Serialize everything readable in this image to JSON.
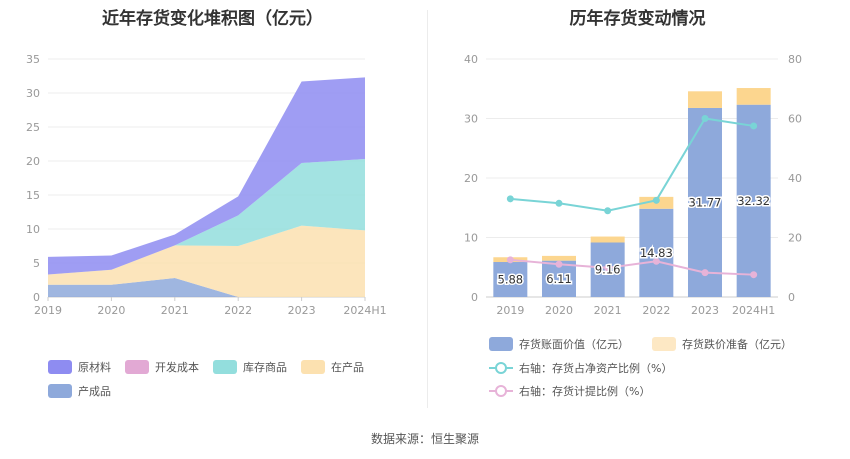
{
  "left_title": "近年存货变化堆积图（亿元）",
  "right_title": "历年存货变动情况",
  "source": "数据来源：恒生聚源",
  "chart_data": [
    {
      "type": "area",
      "stacked": true,
      "title": "近年存货变化堆积图（亿元）",
      "categories": [
        "2019",
        "2020",
        "2021",
        "2022",
        "2023",
        "2024H1"
      ],
      "ylim": [
        0,
        35
      ],
      "yticks": [
        0,
        5,
        10,
        15,
        20,
        25,
        30,
        35
      ],
      "grid": true,
      "legend_position": "bottom",
      "series": [
        {
          "name": "产成品",
          "color": "#8ea9db",
          "values": [
            1.8,
            1.8,
            2.8,
            0,
            0,
            0
          ]
        },
        {
          "name": "在产品",
          "color": "#fce1b0",
          "values": [
            1.5,
            2.2,
            4.8,
            7.5,
            10.5,
            9.8
          ]
        },
        {
          "name": "库存商品",
          "color": "#93dedd",
          "values": [
            0,
            0,
            0,
            4.5,
            9.2,
            10.5
          ]
        },
        {
          "name": "开发成本",
          "color": "#e2a9d4",
          "values": [
            0,
            0,
            0,
            0,
            0,
            0
          ]
        },
        {
          "name": "原材料",
          "color": "#8e8cf1",
          "values": [
            2.6,
            2.1,
            1.6,
            2.8,
            12.0,
            12.0
          ]
        }
      ],
      "legend_order": [
        "原材料",
        "开发成本",
        "库存商品",
        "在产品",
        "产成品"
      ]
    },
    {
      "type": "bar",
      "stacked": true,
      "title": "历年存货变动情况",
      "categories": [
        "2019",
        "2020",
        "2021",
        "2022",
        "2023",
        "2024H1"
      ],
      "ylim": [
        0,
        40
      ],
      "yticks": [
        0,
        10,
        20,
        30,
        40
      ],
      "y2lim": [
        0,
        80
      ],
      "y2ticks": [
        0,
        20,
        40,
        60,
        80
      ],
      "grid": true,
      "legend_position": "bottom",
      "bars": [
        {
          "name": "存货账面价值（亿元）",
          "color": "#8ea9db",
          "values": [
            5.88,
            6.11,
            9.16,
            14.83,
            31.77,
            32.32
          ],
          "labels": [
            "5.88",
            "6.11",
            "9.16",
            "14.83",
            "31.77",
            "32.32"
          ]
        },
        {
          "name": "存货跌价准备（亿元）",
          "color": "#fcd68f",
          "values": [
            0.8,
            0.8,
            1.0,
            2.0,
            2.8,
            2.8
          ]
        }
      ],
      "lines": [
        {
          "name": "右轴：存货占净资产比例（%）",
          "color": "#79d4d6",
          "axis": "right",
          "values": [
            33,
            31.5,
            29,
            32.5,
            60,
            57.5
          ]
        },
        {
          "name": "右轴：存货计提比例（%）",
          "color": "#e7b3d8",
          "axis": "right",
          "values": [
            12.5,
            11,
            9.8,
            12,
            8.2,
            7.5
          ]
        }
      ]
    }
  ]
}
